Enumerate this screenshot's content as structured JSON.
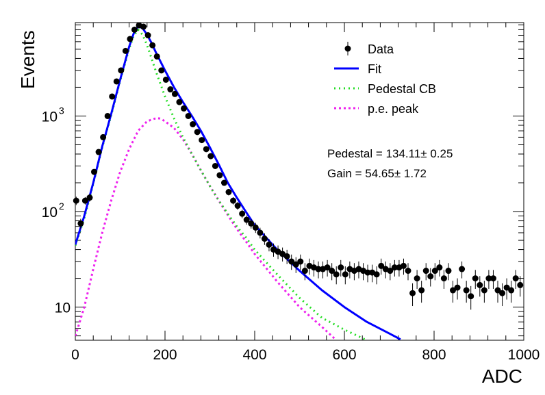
{
  "chart_data": {
    "type": "scatter",
    "xlabel": "ADC",
    "ylabel": "Events",
    "xlim": [
      0,
      1000
    ],
    "ylim": [
      4.5,
      9500
    ],
    "yscale": "log",
    "x_ticks": [
      {
        "value": 0,
        "label": "0"
      },
      {
        "value": 200,
        "label": "200"
      },
      {
        "value": 400,
        "label": "400"
      },
      {
        "value": 600,
        "label": "600"
      },
      {
        "value": 800,
        "label": "800"
      },
      {
        "value": 1000,
        "label": "1000"
      }
    ],
    "y_ticks": [
      {
        "value": 10,
        "base": "10",
        "exp": ""
      },
      {
        "value": 100,
        "base": "10",
        "exp": "2"
      },
      {
        "value": 1000,
        "base": "10",
        "exp": "3"
      }
    ],
    "legend": {
      "placement": "top-right",
      "entries": [
        {
          "label": "Data",
          "style": "marker",
          "color": "#000000"
        },
        {
          "label": "Fit",
          "style": "solid",
          "color": "#0000ff"
        },
        {
          "label": "Pedestal CB",
          "style": "dotted",
          "color": "#22dd22"
        },
        {
          "label": "p.e. peak",
          "style": "dashed",
          "color": "#ee22ee"
        }
      ]
    },
    "annotations": [
      {
        "name": "pedestal",
        "text": "Pedestal = 134.11± 0.25"
      },
      {
        "name": "gain",
        "text": "Gain = 54.65± 1.72"
      }
    ],
    "data": {
      "name": "Data",
      "x": [
        2,
        12,
        22,
        32,
        42,
        52,
        62,
        72,
        82,
        92,
        102,
        112,
        122,
        132,
        142,
        152,
        162,
        172,
        182,
        192,
        202,
        212,
        222,
        232,
        242,
        252,
        262,
        272,
        282,
        292,
        302,
        312,
        322,
        332,
        342,
        352,
        362,
        372,
        382,
        392,
        402,
        412,
        422,
        432,
        442,
        452,
        462,
        472,
        482,
        492,
        502,
        512,
        522,
        532,
        542,
        552,
        562,
        572,
        582,
        592,
        602,
        612,
        622,
        632,
        642,
        652,
        662,
        672,
        682,
        692,
        702,
        712,
        722,
        732,
        742,
        752,
        762,
        772,
        782,
        792,
        802,
        812,
        822,
        832,
        842,
        852,
        862,
        872,
        882,
        892,
        902,
        912,
        922,
        932,
        942,
        952,
        962,
        972,
        982,
        992
      ],
      "y": [
        130,
        75,
        130,
        140,
        260,
        420,
        600,
        1000,
        1600,
        2300,
        3000,
        4800,
        6400,
        8000,
        8900,
        8600,
        7000,
        5500,
        4200,
        3000,
        2400,
        1900,
        1700,
        1400,
        1200,
        1000,
        820,
        680,
        560,
        450,
        380,
        300,
        240,
        200,
        160,
        130,
        115,
        95,
        82,
        75,
        68,
        60,
        52,
        45,
        40,
        38,
        36,
        34,
        30,
        28,
        30,
        24,
        27,
        26,
        25,
        25,
        26,
        24,
        22,
        26,
        22,
        25,
        24,
        25,
        24,
        23,
        23,
        22,
        27,
        25,
        24,
        26,
        26,
        27,
        24,
        14,
        20,
        15,
        24,
        21,
        24,
        26,
        20,
        24,
        15,
        16,
        25,
        15,
        13,
        20,
        17,
        15,
        20,
        20,
        15,
        14,
        16,
        15,
        20,
        17
      ],
      "err_rel": [
        0.1,
        0.12,
        0.09,
        0.09,
        0.065,
        0.05,
        0.04,
        0.032,
        0.025,
        0.021,
        0.018,
        0.014,
        0.012,
        0.011,
        0.011,
        0.011,
        0.012,
        0.013,
        0.015,
        0.018,
        0.02,
        0.023,
        0.024,
        0.027,
        0.029,
        0.032,
        0.035,
        0.038,
        0.042,
        0.047,
        0.051,
        0.058,
        0.065,
        0.071,
        0.079,
        0.088,
        0.093,
        0.103,
        0.11,
        0.115,
        0.121,
        0.129,
        0.139,
        0.149,
        0.158,
        0.162,
        0.167,
        0.171,
        0.183,
        0.189,
        0.183,
        0.204,
        0.192,
        0.196,
        0.2,
        0.2,
        0.196,
        0.204,
        0.213,
        0.196,
        0.213,
        0.2,
        0.204,
        0.2,
        0.204,
        0.209,
        0.209,
        0.213,
        0.192,
        0.2,
        0.204,
        0.196,
        0.196,
        0.192,
        0.204,
        0.267,
        0.224,
        0.258,
        0.204,
        0.218,
        0.204,
        0.196,
        0.224,
        0.204,
        0.258,
        0.25,
        0.2,
        0.258,
        0.277,
        0.224,
        0.243,
        0.258,
        0.224,
        0.224,
        0.258,
        0.267,
        0.25,
        0.258,
        0.224,
        0.243
      ]
    },
    "series": [
      {
        "name": "Fit",
        "x": [
          0,
          20,
          40,
          60,
          80,
          100,
          120,
          130,
          140,
          150,
          160,
          170,
          180,
          200,
          220,
          240,
          260,
          280,
          300,
          320,
          340,
          360,
          380,
          400,
          450,
          500,
          550,
          600,
          650,
          700,
          725
        ],
        "y": [
          45,
          90,
          200,
          480,
          1050,
          2400,
          5300,
          7300,
          8700,
          8300,
          7100,
          5800,
          4600,
          3000,
          2000,
          1400,
          1000,
          700,
          470,
          310,
          200,
          140,
          100,
          72,
          40,
          24,
          15,
          10,
          7,
          5.3,
          4.6
        ]
      },
      {
        "name": "Pedestal CB",
        "x": [
          0,
          20,
          40,
          60,
          80,
          100,
          120,
          130,
          140,
          150,
          160,
          170,
          180,
          200,
          220,
          240,
          260,
          280,
          300,
          320,
          340,
          360,
          380,
          400,
          450,
          500,
          550,
          600,
          650
        ],
        "y": [
          44,
          85,
          195,
          470,
          1020,
          2330,
          5050,
          6900,
          8000,
          7100,
          5500,
          4000,
          2900,
          1600,
          950,
          600,
          400,
          270,
          185,
          130,
          95,
          70,
          54,
          40,
          22,
          12.5,
          7.7,
          5.8,
          4.5
        ]
      },
      {
        "name": "p.e. peak",
        "x": [
          0,
          10,
          20,
          40,
          60,
          80,
          100,
          120,
          140,
          160,
          180,
          190,
          200,
          220,
          240,
          260,
          280,
          300,
          320,
          340,
          360,
          380,
          400,
          450,
          500,
          550,
          580
        ],
        "y": [
          5,
          7,
          10,
          25,
          60,
          130,
          260,
          450,
          700,
          880,
          950,
          940,
          880,
          750,
          570,
          400,
          270,
          185,
          130,
          92,
          66,
          49,
          36,
          18.5,
          10,
          6.2,
          4.6
        ]
      }
    ]
  }
}
